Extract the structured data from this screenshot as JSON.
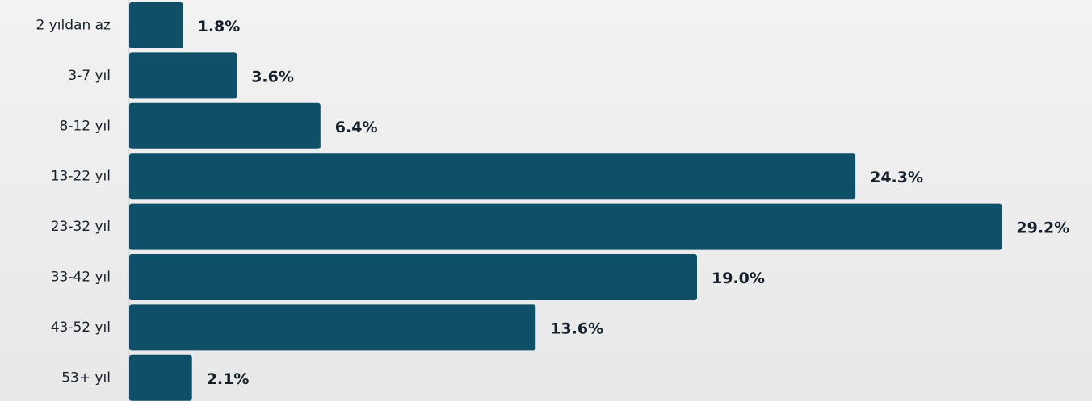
{
  "chart_data": {
    "type": "barh",
    "categories": [
      "2 yıldan az",
      "3-7 yıl",
      "8-12 yıl",
      "13-22 yıl",
      "23-32 yıl",
      "33-42 yıl",
      "43-52 yıl",
      "53+ yıl"
    ],
    "values": [
      1.8,
      3.6,
      6.4,
      24.3,
      29.2,
      19.0,
      13.6,
      2.1
    ],
    "value_labels": [
      "1.8%",
      "3.6%",
      "6.4%",
      "24.3%",
      "29.2%",
      "19.0%",
      "13.6%",
      "2.1%"
    ],
    "color": "#0f4f67",
    "xlim": [
      0,
      30
    ]
  }
}
